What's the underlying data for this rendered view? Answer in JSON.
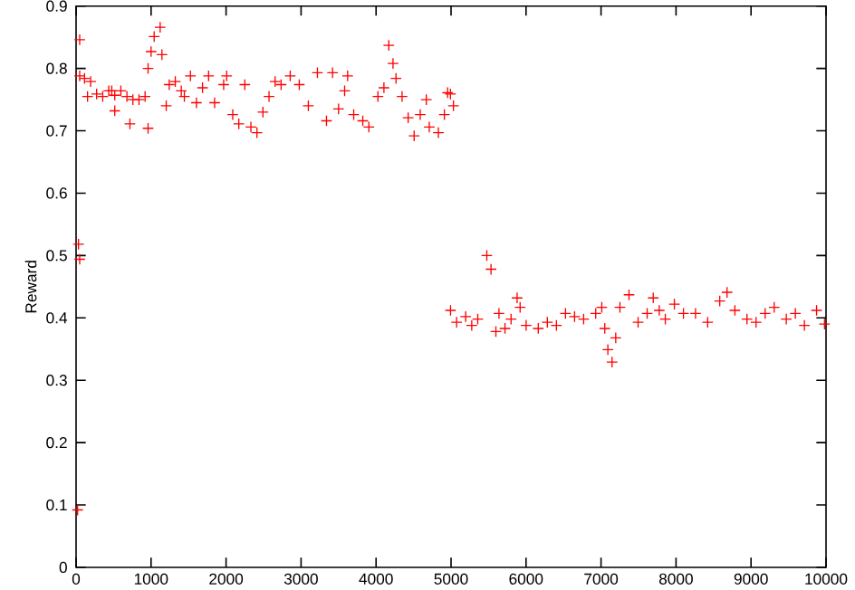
{
  "chart_data": {
    "type": "scatter",
    "ylabel": "Reward",
    "marker": "cross",
    "xlim": [
      0,
      10000
    ],
    "ylim": [
      0,
      0.9
    ],
    "xticks": [
      0,
      1000,
      2000,
      3000,
      4000,
      5000,
      6000,
      7000,
      8000,
      9000,
      10000
    ],
    "yticks": [
      0,
      0.1,
      0.2,
      0.3,
      0.4,
      0.5,
      0.6,
      0.7,
      0.8,
      0.9
    ],
    "series": [
      {
        "color": "#ff0000",
        "x": [
          20,
          48,
          48,
          32,
          48,
          113,
          194,
          153,
          274,
          355,
          436,
          516,
          597,
          678,
          758,
          839,
          920,
          960,
          718,
          516,
          476,
          960,
          1000,
          1041,
          1121,
          1145,
          1202,
          1242,
          1323,
          1403,
          1444,
          1525,
          1605,
          1686,
          1767,
          1847,
          1968,
          2008,
          2089,
          2170,
          2250,
          2331,
          2412,
          2492,
          2573,
          2654,
          2734,
          2855,
          2976,
          3097,
          3218,
          3339,
          3420,
          3500,
          3581,
          3621,
          3702,
          3823,
          3904,
          4025,
          4105,
          4170,
          4226,
          4266,
          4347,
          4428,
          4508,
          4589,
          4670,
          4710,
          4831,
          4911,
          4954,
          4992,
          5032,
          4993,
          5074,
          5195,
          5276,
          5356,
          5477,
          5533,
          5598,
          5639,
          5719,
          5800,
          5881,
          5921,
          6001,
          6163,
          6284,
          6405,
          6526,
          6647,
          6768,
          6929,
          7010,
          7050,
          7091,
          7147,
          7196,
          7252,
          7373,
          7494,
          7615,
          7696,
          7776,
          7857,
          7978,
          8099,
          8260,
          8422,
          8583,
          8680,
          8785,
          8946,
          9067,
          9188,
          9309,
          9470,
          9591,
          9712,
          9874,
          9980
        ],
        "values": [
          0.092,
          0.846,
          0.788,
          0.518,
          0.494,
          0.784,
          0.779,
          0.755,
          0.759,
          0.755,
          0.764,
          0.757,
          0.764,
          0.755,
          0.75,
          0.75,
          0.755,
          0.704,
          0.711,
          0.732,
          0.764,
          0.8,
          0.827,
          0.851,
          0.866,
          0.822,
          0.74,
          0.774,
          0.779,
          0.764,
          0.755,
          0.788,
          0.745,
          0.769,
          0.788,
          0.745,
          0.774,
          0.788,
          0.726,
          0.711,
          0.774,
          0.706,
          0.697,
          0.73,
          0.755,
          0.779,
          0.774,
          0.788,
          0.774,
          0.74,
          0.793,
          0.716,
          0.793,
          0.735,
          0.764,
          0.788,
          0.726,
          0.716,
          0.706,
          0.755,
          0.769,
          0.837,
          0.808,
          0.784,
          0.755,
          0.721,
          0.692,
          0.726,
          0.75,
          0.706,
          0.697,
          0.726,
          0.761,
          0.759,
          0.74,
          0.412,
          0.393,
          0.402,
          0.388,
          0.398,
          0.5,
          0.478,
          0.378,
          0.407,
          0.383,
          0.398,
          0.432,
          0.417,
          0.388,
          0.383,
          0.393,
          0.388,
          0.407,
          0.402,
          0.398,
          0.407,
          0.417,
          0.383,
          0.349,
          0.329,
          0.368,
          0.417,
          0.437,
          0.393,
          0.407,
          0.432,
          0.412,
          0.398,
          0.422,
          0.407,
          0.407,
          0.393,
          0.427,
          0.441,
          0.412,
          0.398,
          0.393,
          0.407,
          0.417,
          0.398,
          0.407,
          0.388,
          0.412,
          0.39
        ]
      }
    ]
  }
}
